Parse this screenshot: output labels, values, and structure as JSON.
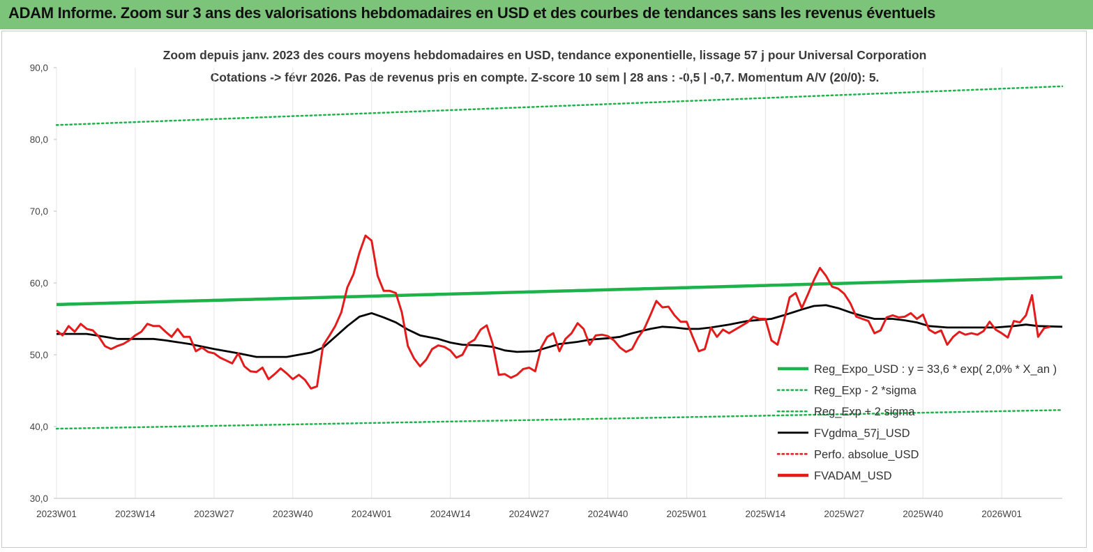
{
  "header": {
    "title": "ADAM Informe. Zoom sur 3 ans des valorisations hebdomadaires en USD et des courbes de tendances sans les revenus éventuels",
    "background_color": "#7cc47a"
  },
  "chart_data": {
    "type": "line",
    "title": "Zoom depuis janv. 2023 des cours moyens hebdomadaires en USD, tendance exponentielle, lissage 57 j pour Universal Corporation",
    "subtitle": "Cotations -> févr 2026.  Pas de revenus pris en compte. Z-score 10 sem  | 28 ans : -0,5 | -0,7. Momentum A/V (20/0): 5.",
    "xlabel": "",
    "ylabel": "",
    "ylim": [
      30,
      90
    ],
    "y_ticks": [
      "30,0",
      "40,0",
      "50,0",
      "60,0",
      "70,0",
      "80,0",
      "90,0"
    ],
    "x_tick_labels": [
      "2023W01",
      "2023W14",
      "2023W27",
      "2023W40",
      "2024W01",
      "2024W14",
      "2024W27",
      "2024W40",
      "2025W01",
      "2025W14",
      "2025W27",
      "2025W40",
      "2026W01"
    ],
    "x_tick_index": [
      0,
      13,
      26,
      39,
      52,
      65,
      78,
      91,
      104,
      117,
      130,
      143,
      156
    ],
    "n_weeks": 167,
    "grid": "vertical",
    "legend_position": "bottom-right",
    "legend": [
      {
        "label": "Reg_Expo_USD : y = 33,6 * exp( 2,0% *  X_an )",
        "color": "#1db24a",
        "style": "solid-thick"
      },
      {
        "label": "Reg_Exp - 2 *sigma",
        "color": "#1db24a",
        "style": "dotted"
      },
      {
        "label": "Reg_Exp + 2 sigma",
        "color": "#1db24a",
        "style": "dotted"
      },
      {
        "label": "FVgdma_57j_USD",
        "color": "#000000",
        "style": "solid"
      },
      {
        "label": "Perfo. absolue_USD",
        "color": "#e31b1b",
        "style": "dotted"
      },
      {
        "label": "FVADAM_USD",
        "color": "#e31b1b",
        "style": "solid-thick"
      }
    ],
    "series": [
      {
        "name": "Reg_Expo_USD : y = 33,6 * exp( 2,0% *  X_an )",
        "start": 57.0,
        "end": 60.8,
        "color": "#1db24a"
      },
      {
        "name": "Reg_Exp - 2 *sigma",
        "start": 39.7,
        "end": 42.3,
        "color": "#1db24a"
      },
      {
        "name": "Reg_Exp + 2 sigma",
        "start": 82.0,
        "end": 87.4,
        "color": "#1db24a"
      },
      {
        "name": "FVgdma_57j_USD",
        "color": "#000000",
        "points": [
          [
            0,
            52.9
          ],
          [
            5,
            52.9
          ],
          [
            8,
            52.5
          ],
          [
            10,
            52.2
          ],
          [
            16,
            52.2
          ],
          [
            18,
            52.0
          ],
          [
            22,
            51.5
          ],
          [
            26,
            50.8
          ],
          [
            30,
            50.2
          ],
          [
            33,
            49.7
          ],
          [
            38,
            49.7
          ],
          [
            42,
            50.3
          ],
          [
            44,
            51.0
          ],
          [
            46,
            52.5
          ],
          [
            48,
            54.0
          ],
          [
            50,
            55.3
          ],
          [
            52,
            55.8
          ],
          [
            54,
            55.2
          ],
          [
            56,
            54.5
          ],
          [
            58,
            53.5
          ],
          [
            60,
            52.7
          ],
          [
            63,
            52.2
          ],
          [
            65,
            51.7
          ],
          [
            67,
            51.4
          ],
          [
            70,
            51.3
          ],
          [
            72,
            51.1
          ],
          [
            74,
            50.6
          ],
          [
            76,
            50.4
          ],
          [
            79,
            50.5
          ],
          [
            81,
            51.0
          ],
          [
            83,
            51.5
          ],
          [
            86,
            51.8
          ],
          [
            88,
            52.1
          ],
          [
            91,
            52.3
          ],
          [
            93,
            52.5
          ],
          [
            95,
            53.0
          ],
          [
            98,
            53.6
          ],
          [
            100,
            53.9
          ],
          [
            102,
            53.8
          ],
          [
            104,
            53.6
          ],
          [
            106,
            53.6
          ],
          [
            108,
            53.8
          ],
          [
            111,
            54.2
          ],
          [
            114,
            54.7
          ],
          [
            118,
            55.0
          ],
          [
            120,
            55.5
          ],
          [
            123,
            56.3
          ],
          [
            125,
            56.8
          ],
          [
            127,
            56.9
          ],
          [
            129,
            56.5
          ],
          [
            131,
            55.9
          ],
          [
            133,
            55.4
          ],
          [
            135,
            55.0
          ],
          [
            138,
            55.0
          ],
          [
            140,
            54.8
          ],
          [
            142,
            54.5
          ],
          [
            144,
            54.0
          ],
          [
            147,
            53.8
          ],
          [
            155,
            53.8
          ],
          [
            158,
            54.0
          ],
          [
            160,
            54.2
          ],
          [
            162,
            54.0
          ],
          [
            166,
            53.9
          ]
        ]
      },
      {
        "name": "Perfo. absolue_USD",
        "color": "#e31b1b",
        "points": []
      },
      {
        "name": "FVADAM_USD",
        "color": "#e31b1b",
        "points": [
          [
            0,
            53.4
          ],
          [
            1,
            52.7
          ],
          [
            2,
            54.0
          ],
          [
            3,
            53.2
          ],
          [
            4,
            54.3
          ],
          [
            5,
            53.6
          ],
          [
            6,
            53.4
          ],
          [
            7,
            52.5
          ],
          [
            8,
            51.2
          ],
          [
            9,
            50.8
          ],
          [
            10,
            51.2
          ],
          [
            11,
            51.5
          ],
          [
            12,
            52.0
          ],
          [
            13,
            52.7
          ],
          [
            14,
            53.2
          ],
          [
            15,
            54.3
          ],
          [
            16,
            54.0
          ],
          [
            17,
            54.0
          ],
          [
            18,
            53.2
          ],
          [
            19,
            52.5
          ],
          [
            20,
            53.6
          ],
          [
            21,
            52.5
          ],
          [
            22,
            52.5
          ],
          [
            23,
            50.5
          ],
          [
            24,
            51.0
          ],
          [
            25,
            50.4
          ],
          [
            26,
            50.2
          ],
          [
            27,
            49.6
          ],
          [
            28,
            49.2
          ],
          [
            29,
            48.8
          ],
          [
            30,
            50.2
          ],
          [
            31,
            48.4
          ],
          [
            32,
            47.7
          ],
          [
            33,
            47.6
          ],
          [
            34,
            48.2
          ],
          [
            35,
            46.6
          ],
          [
            36,
            47.3
          ],
          [
            37,
            48.1
          ],
          [
            38,
            47.4
          ],
          [
            39,
            46.6
          ],
          [
            40,
            47.2
          ],
          [
            41,
            46.5
          ],
          [
            42,
            45.3
          ],
          [
            43,
            45.6
          ],
          [
            44,
            51.3
          ],
          [
            45,
            52.6
          ],
          [
            46,
            54.0
          ],
          [
            47,
            55.9
          ],
          [
            48,
            59.4
          ],
          [
            49,
            61.2
          ],
          [
            50,
            64.2
          ],
          [
            51,
            66.6
          ],
          [
            52,
            65.9
          ],
          [
            53,
            61.0
          ],
          [
            54,
            58.9
          ],
          [
            55,
            58.9
          ],
          [
            56,
            58.6
          ],
          [
            57,
            55.9
          ],
          [
            58,
            51.2
          ],
          [
            59,
            49.5
          ],
          [
            60,
            48.4
          ],
          [
            61,
            49.3
          ],
          [
            62,
            50.8
          ],
          [
            63,
            51.3
          ],
          [
            64,
            51.1
          ],
          [
            65,
            50.6
          ],
          [
            66,
            49.6
          ],
          [
            67,
            50.0
          ],
          [
            68,
            51.6
          ],
          [
            69,
            52.1
          ],
          [
            70,
            53.5
          ],
          [
            71,
            54.1
          ],
          [
            72,
            51.5
          ],
          [
            73,
            47.2
          ],
          [
            74,
            47.3
          ],
          [
            75,
            46.8
          ],
          [
            76,
            47.2
          ],
          [
            77,
            48.0
          ],
          [
            78,
            48.2
          ],
          [
            79,
            47.7
          ],
          [
            80,
            51.0
          ],
          [
            81,
            52.5
          ],
          [
            82,
            53.0
          ],
          [
            83,
            50.5
          ],
          [
            84,
            52.2
          ],
          [
            85,
            53.0
          ],
          [
            86,
            54.4
          ],
          [
            87,
            53.6
          ],
          [
            88,
            51.4
          ],
          [
            89,
            52.7
          ],
          [
            90,
            52.8
          ],
          [
            91,
            52.6
          ],
          [
            92,
            52.0
          ],
          [
            93,
            51.0
          ],
          [
            94,
            50.4
          ],
          [
            95,
            50.8
          ],
          [
            96,
            52.4
          ],
          [
            97,
            53.6
          ],
          [
            98,
            55.5
          ],
          [
            99,
            57.5
          ],
          [
            100,
            56.6
          ],
          [
            101,
            56.7
          ],
          [
            102,
            55.5
          ],
          [
            103,
            54.6
          ],
          [
            104,
            54.6
          ],
          [
            105,
            52.5
          ],
          [
            106,
            50.5
          ],
          [
            107,
            50.8
          ],
          [
            108,
            53.8
          ],
          [
            109,
            52.5
          ],
          [
            110,
            53.5
          ],
          [
            111,
            53.0
          ],
          [
            112,
            53.5
          ],
          [
            113,
            54.0
          ],
          [
            114,
            54.5
          ],
          [
            115,
            55.3
          ],
          [
            116,
            55.0
          ],
          [
            117,
            55.0
          ],
          [
            118,
            52.0
          ],
          [
            119,
            51.4
          ],
          [
            120,
            54.5
          ],
          [
            121,
            58.0
          ],
          [
            122,
            58.6
          ],
          [
            123,
            56.5
          ],
          [
            124,
            58.4
          ],
          [
            125,
            60.4
          ],
          [
            126,
            62.1
          ],
          [
            127,
            61.0
          ],
          [
            128,
            59.5
          ],
          [
            129,
            59.2
          ],
          [
            130,
            58.5
          ],
          [
            131,
            57.2
          ],
          [
            132,
            55.3
          ],
          [
            133,
            55.0
          ],
          [
            134,
            54.7
          ],
          [
            135,
            53.0
          ],
          [
            136,
            53.4
          ],
          [
            137,
            55.2
          ],
          [
            138,
            55.5
          ],
          [
            139,
            55.2
          ],
          [
            140,
            55.3
          ],
          [
            141,
            55.8
          ],
          [
            142,
            55.0
          ],
          [
            143,
            55.6
          ],
          [
            144,
            53.5
          ],
          [
            145,
            53.0
          ],
          [
            146,
            53.4
          ],
          [
            147,
            51.4
          ],
          [
            148,
            52.5
          ],
          [
            149,
            53.2
          ],
          [
            150,
            52.8
          ],
          [
            151,
            53.0
          ],
          [
            152,
            52.8
          ],
          [
            153,
            53.3
          ],
          [
            154,
            54.6
          ],
          [
            155,
            53.5
          ],
          [
            156,
            53.0
          ],
          [
            157,
            52.4
          ],
          [
            158,
            54.7
          ],
          [
            159,
            54.5
          ],
          [
            160,
            55.5
          ],
          [
            161,
            58.3
          ],
          [
            162,
            52.5
          ],
          [
            163,
            53.7
          ],
          [
            164,
            53.9
          ]
        ]
      }
    ]
  }
}
